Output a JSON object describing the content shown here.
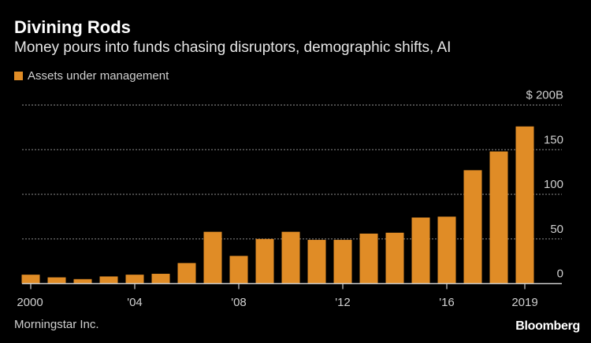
{
  "title": "Divining Rods",
  "subtitle": "Money pours into funds chasing disruptors, demographic shifts, AI",
  "source": "Morningstar Inc.",
  "logo": "Bloomberg",
  "chart_data": {
    "type": "bar",
    "categories": [
      "2000",
      "2001",
      "2002",
      "2003",
      "2004",
      "2005",
      "2006",
      "2007",
      "2008",
      "2009",
      "2010",
      "2011",
      "2012",
      "2013",
      "2014",
      "2015",
      "2016",
      "2017",
      "2018",
      "2019"
    ],
    "series": [
      {
        "name": "Assets under management",
        "values": [
          10,
          7,
          5,
          8,
          10,
          11,
          23,
          58,
          31,
          50,
          58,
          49,
          49,
          56,
          57,
          74,
          75,
          127,
          148,
          176
        ]
      }
    ],
    "x_tick_labels": [
      {
        "category": "2000",
        "label": "2000"
      },
      {
        "category": "2004",
        "label": "'04"
      },
      {
        "category": "2008",
        "label": "'08"
      },
      {
        "category": "2012",
        "label": "'12"
      },
      {
        "category": "2016",
        "label": "'16"
      },
      {
        "category": "2019",
        "label": "2019"
      }
    ],
    "y_ticks": [
      0,
      50,
      100,
      150,
      200
    ],
    "y_tick_labels": [
      "0",
      "50",
      "100",
      "150",
      "$ 200B"
    ],
    "ylim": [
      0,
      200
    ],
    "y_axis_side": "right",
    "grid": true,
    "legend_position": "top-left",
    "bar_color": "#e08c26",
    "background": "#000000"
  }
}
